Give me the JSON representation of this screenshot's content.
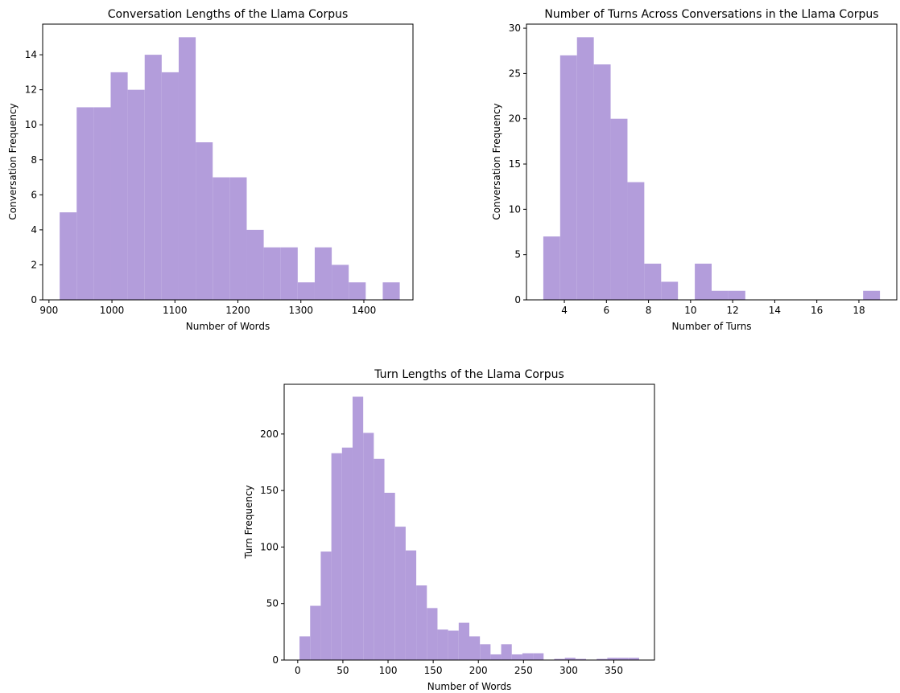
{
  "theme": {
    "bar_color": "#b39ddb",
    "axis_color": "#000000"
  },
  "chart_data": [
    {
      "type": "bar",
      "title": "Conversation Lengths of the Llama Corpus",
      "xlabel": "Number of Words",
      "ylabel": "Conversation Frequency",
      "xlim": [
        890,
        1478
      ],
      "ylim": [
        0,
        15.75
      ],
      "xticks": [
        900,
        1000,
        1100,
        1200,
        1300,
        1400
      ],
      "yticks": [
        0,
        2,
        4,
        6,
        8,
        10,
        12,
        14
      ],
      "bins": [
        {
          "x0": 917,
          "x1": 944,
          "value": 5
        },
        {
          "x0": 944,
          "x1": 971,
          "value": 11
        },
        {
          "x0": 971,
          "x1": 998,
          "value": 11
        },
        {
          "x0": 998,
          "x1": 1025,
          "value": 13
        },
        {
          "x0": 1025,
          "x1": 1052,
          "value": 12
        },
        {
          "x0": 1052,
          "x1": 1079,
          "value": 14
        },
        {
          "x0": 1079,
          "x1": 1106,
          "value": 13
        },
        {
          "x0": 1106,
          "x1": 1133,
          "value": 15
        },
        {
          "x0": 1133,
          "x1": 1160,
          "value": 9
        },
        {
          "x0": 1160,
          "x1": 1187,
          "value": 7
        },
        {
          "x0": 1187,
          "x1": 1214,
          "value": 7
        },
        {
          "x0": 1214,
          "x1": 1241,
          "value": 4
        },
        {
          "x0": 1241,
          "x1": 1268,
          "value": 3
        },
        {
          "x0": 1268,
          "x1": 1295,
          "value": 3
        },
        {
          "x0": 1295,
          "x1": 1322,
          "value": 1
        },
        {
          "x0": 1322,
          "x1": 1349,
          "value": 3
        },
        {
          "x0": 1349,
          "x1": 1376,
          "value": 2
        },
        {
          "x0": 1376,
          "x1": 1403,
          "value": 1
        },
        {
          "x0": 1403,
          "x1": 1430,
          "value": 0
        },
        {
          "x0": 1430,
          "x1": 1457,
          "value": 1
        }
      ]
    },
    {
      "type": "bar",
      "title": "Number of Turns Across Conversations in the Llama Corpus",
      "xlabel": "Number of Turns",
      "ylabel": "Conversation Frequency",
      "xlim": [
        2.2,
        19.8
      ],
      "ylim": [
        0,
        30.45
      ],
      "xticks": [
        4,
        6,
        8,
        10,
        12,
        14,
        16,
        18
      ],
      "yticks": [
        0,
        5,
        10,
        15,
        20,
        25,
        30
      ],
      "bins": [
        {
          "x0": 3.0,
          "x1": 3.8,
          "value": 7
        },
        {
          "x0": 3.8,
          "x1": 4.6,
          "value": 27
        },
        {
          "x0": 4.6,
          "x1": 5.4,
          "value": 29
        },
        {
          "x0": 5.4,
          "x1": 6.2,
          "value": 26
        },
        {
          "x0": 6.2,
          "x1": 7.0,
          "value": 20
        },
        {
          "x0": 7.0,
          "x1": 7.8,
          "value": 13
        },
        {
          "x0": 7.8,
          "x1": 8.6,
          "value": 4
        },
        {
          "x0": 8.6,
          "x1": 9.4,
          "value": 2
        },
        {
          "x0": 9.4,
          "x1": 10.2,
          "value": 0
        },
        {
          "x0": 10.2,
          "x1": 11.0,
          "value": 4
        },
        {
          "x0": 11.0,
          "x1": 11.8,
          "value": 1
        },
        {
          "x0": 11.8,
          "x1": 12.6,
          "value": 1
        },
        {
          "x0": 12.6,
          "x1": 13.4,
          "value": 0
        },
        {
          "x0": 13.4,
          "x1": 14.2,
          "value": 0
        },
        {
          "x0": 14.2,
          "x1": 15.0,
          "value": 0
        },
        {
          "x0": 15.0,
          "x1": 15.8,
          "value": 0
        },
        {
          "x0": 15.8,
          "x1": 16.6,
          "value": 0
        },
        {
          "x0": 16.6,
          "x1": 17.4,
          "value": 0
        },
        {
          "x0": 17.4,
          "x1": 18.2,
          "value": 0
        },
        {
          "x0": 18.2,
          "x1": 19.0,
          "value": 1
        }
      ]
    },
    {
      "type": "bar",
      "title": "Turn Lengths of the Llama Corpus",
      "xlabel": "Number of Words",
      "ylabel": "Turn Frequency",
      "xlim": [
        -15,
        395
      ],
      "ylim": [
        0,
        244
      ],
      "xticks": [
        0,
        50,
        100,
        150,
        200,
        250,
        300,
        350
      ],
      "yticks": [
        0,
        50,
        100,
        150,
        200
      ],
      "bins": [
        {
          "x0": 2.0,
          "x1": 13.75,
          "value": 21
        },
        {
          "x0": 13.75,
          "x1": 25.5,
          "value": 48
        },
        {
          "x0": 25.5,
          "x1": 37.25,
          "value": 96
        },
        {
          "x0": 37.25,
          "x1": 49.0,
          "value": 183
        },
        {
          "x0": 49.0,
          "x1": 60.75,
          "value": 188
        },
        {
          "x0": 60.75,
          "x1": 72.5,
          "value": 233
        },
        {
          "x0": 72.5,
          "x1": 84.25,
          "value": 201
        },
        {
          "x0": 84.25,
          "x1": 96.0,
          "value": 178
        },
        {
          "x0": 96.0,
          "x1": 107.75,
          "value": 148
        },
        {
          "x0": 107.75,
          "x1": 119.5,
          "value": 118
        },
        {
          "x0": 119.5,
          "x1": 131.25,
          "value": 97
        },
        {
          "x0": 131.25,
          "x1": 143.0,
          "value": 66
        },
        {
          "x0": 143.0,
          "x1": 154.75,
          "value": 46
        },
        {
          "x0": 154.75,
          "x1": 166.5,
          "value": 27
        },
        {
          "x0": 166.5,
          "x1": 178.25,
          "value": 26
        },
        {
          "x0": 178.25,
          "x1": 190.0,
          "value": 33
        },
        {
          "x0": 190.0,
          "x1": 201.75,
          "value": 21
        },
        {
          "x0": 201.75,
          "x1": 213.5,
          "value": 14
        },
        {
          "x0": 213.5,
          "x1": 225.25,
          "value": 5
        },
        {
          "x0": 225.25,
          "x1": 237.0,
          "value": 14
        },
        {
          "x0": 237.0,
          "x1": 248.75,
          "value": 5
        },
        {
          "x0": 248.75,
          "x1": 260.5,
          "value": 6
        },
        {
          "x0": 260.5,
          "x1": 272.25,
          "value": 6
        },
        {
          "x0": 272.25,
          "x1": 284.0,
          "value": 0
        },
        {
          "x0": 284.0,
          "x1": 295.75,
          "value": 1
        },
        {
          "x0": 295.75,
          "x1": 307.5,
          "value": 2
        },
        {
          "x0": 307.5,
          "x1": 319.25,
          "value": 1
        },
        {
          "x0": 319.25,
          "x1": 331.0,
          "value": 0
        },
        {
          "x0": 331.0,
          "x1": 342.75,
          "value": 1
        },
        {
          "x0": 342.75,
          "x1": 354.5,
          "value": 2
        },
        {
          "x0": 354.5,
          "x1": 366.25,
          "value": 2
        },
        {
          "x0": 366.25,
          "x1": 378.0,
          "value": 2
        }
      ]
    }
  ]
}
